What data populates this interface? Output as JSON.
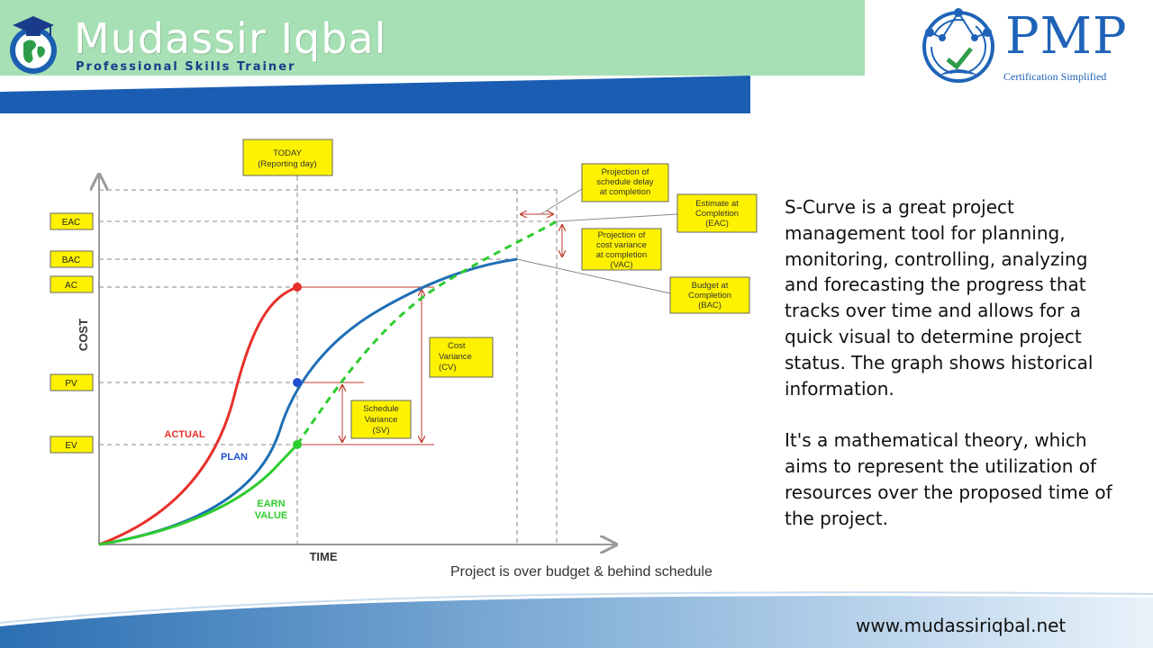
{
  "header": {
    "brand_name": "Mudassir Iqbal",
    "brand_subtitle": "Professional Skills Trainer",
    "pmp_title": "PMP",
    "pmp_subtitle": "Certification Simplified"
  },
  "chart": {
    "today_box": [
      "TODAY",
      "(Reporting day)"
    ],
    "y_axis_boxes": [
      "EAC",
      "BAC",
      "AC",
      "PV",
      "EV"
    ],
    "y_axis_label": "COST",
    "x_axis_label": "TIME",
    "curve_labels": {
      "actual": "ACTUAL",
      "plan": "PLAN",
      "earn_1": "EARN",
      "earn_2": "VALUE"
    },
    "callouts": {
      "schedule_delay": [
        "Projection of",
        "schedule delay",
        "at completion"
      ],
      "eac": [
        "Estimate at",
        "Completion",
        "(EAC)"
      ],
      "vac": [
        "Projection of",
        "cost variance",
        "at completion",
        "(VAC)"
      ],
      "bac": [
        "Budget at",
        "Completion",
        "(BAC)"
      ],
      "cv": [
        "Cost",
        "Variance",
        "(CV)"
      ],
      "sv": [
        "Schedule",
        "Variance",
        "(SV)"
      ]
    },
    "caption": "Project is over budget & behind schedule",
    "colors": {
      "actual": "#e8302a",
      "plan": "#1f6fb5",
      "earned": "#2ecc2e",
      "box_fill": "#fff200",
      "arrow": "#c0392b"
    }
  },
  "description": {
    "paragraph_1": "S-Curve is a great project management tool for planning, monitoring, controlling, analyzing and forecasting the progress that tracks over time and allows for a quick visual to determine project status. The graph shows historical information.",
    "paragraph_2": "It's a mathematical theory, which aims to represent the utilization of resources over the proposed time of the project."
  },
  "footer": {
    "url": "www.mudassiriqbal.net"
  }
}
